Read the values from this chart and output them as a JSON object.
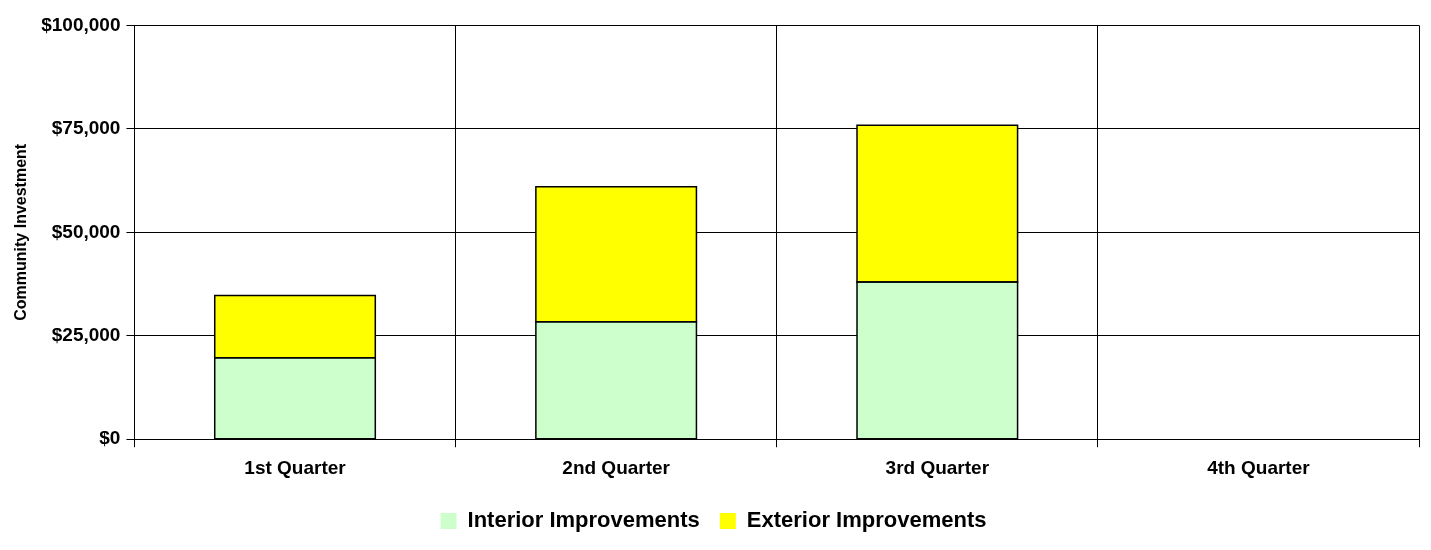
{
  "chart_data": {
    "type": "bar",
    "stacked": true,
    "ylabel": "Community Investment",
    "categories": [
      "1st Quarter",
      "2nd Quarter",
      "3rd Quarter",
      "4th Quarter"
    ],
    "series": [
      {
        "name": "Interior Improvements",
        "color": "#ccffcc",
        "values": [
          19700,
          28400,
          38000,
          null
        ]
      },
      {
        "name": "Exterior Improvements",
        "color": "#ffff00",
        "values": [
          15000,
          32600,
          37900,
          null
        ]
      }
    ],
    "ylim": [
      0,
      100000
    ],
    "yticks": [
      {
        "value": 0,
        "label": "$0"
      },
      {
        "value": 25000,
        "label": "$25,000"
      },
      {
        "value": 50000,
        "label": "$50,000"
      },
      {
        "value": 75000,
        "label": "$75,000"
      },
      {
        "value": 100000,
        "label": "$100,000"
      }
    ],
    "grid": true,
    "legend": "bottom"
  }
}
